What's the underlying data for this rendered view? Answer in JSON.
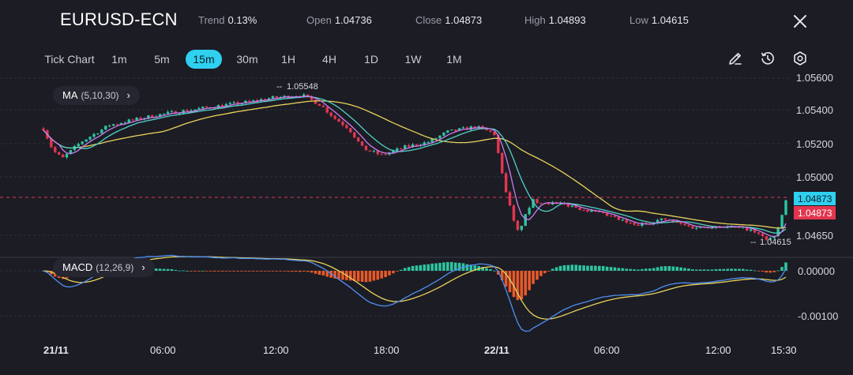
{
  "header": {
    "symbol": "EURUSD-ECN",
    "trend_label": "Trend",
    "trend_value": "0.13%",
    "open_label": "Open",
    "open_value": "1.04736",
    "close_label": "Close",
    "close_value": "1.04873",
    "high_label": "High",
    "high_value": "1.04893",
    "low_label": "Low",
    "low_value": "1.04615",
    "close_icon": "close-icon"
  },
  "toolbar": {
    "tick_chart": "Tick Chart",
    "timeframes": [
      "1m",
      "5m",
      "15m",
      "30m",
      "1H",
      "4H",
      "1D",
      "1W",
      "1M"
    ],
    "active_timeframe": "15m",
    "icons": [
      "draw-pen-icon",
      "history-clock-icon",
      "settings-icon"
    ]
  },
  "price_pane": {
    "indicator_name": "MA",
    "indicator_params": "(5,10,30)",
    "y_ticks": [
      "1.05600",
      "1.05400",
      "1.05200",
      "1.05000",
      "1.04650"
    ],
    "high_marker": "1.05548",
    "low_marker": "1.04615",
    "bid_label": "1.04873",
    "ask_label": "1.04873"
  },
  "macd_pane": {
    "indicator_name": "MACD",
    "indicator_params": "(12,26,9)",
    "y_ticks": [
      "0.00000",
      "-0.00100"
    ]
  },
  "x_axis": {
    "ticks": [
      "21/11",
      "06:00",
      "12:00",
      "18:00",
      "22/11",
      "06:00",
      "12:00",
      "15:30"
    ]
  },
  "colors": {
    "up": "#2ec4a0",
    "down": "#e2364f",
    "ma5": "#c87df0",
    "ma10": "#4fd1c5",
    "ma30": "#e7d35a",
    "macd_line": "#4f8ff2",
    "signal_line": "#e7d35a",
    "hist_pos": "#2ec4a0",
    "hist_neg": "#e8592a",
    "accent": "#2fd0f0"
  },
  "chart_data": {
    "type": "candlestick",
    "symbol": "EURUSD-ECN",
    "interval": "15m",
    "x_labels": [
      "21/11",
      "06:00",
      "12:00",
      "18:00",
      "22/11",
      "06:00",
      "12:00",
      "15:30"
    ],
    "price_anchors": [
      [
        "21/11 00:00",
        1.053
      ],
      [
        "21/11 00:30",
        1.0517
      ],
      [
        "21/11 01:00",
        1.0512
      ],
      [
        "21/11 02:00",
        1.0522
      ],
      [
        "21/11 03:30",
        1.0532
      ],
      [
        "21/11 06:00",
        1.0538
      ],
      [
        "21/11 09:00",
        1.0543
      ],
      [
        "21/11 11:00",
        1.0546
      ],
      [
        "21/11 12:00",
        1.0548
      ],
      [
        "21/11 13:45",
        1.055
      ],
      [
        "21/11 14:45",
        1.0544
      ],
      [
        "21/11 15:30",
        1.0536
      ],
      [
        "21/11 16:15",
        1.053
      ],
      [
        "21/11 17:00",
        1.0518
      ],
      [
        "21/11 18:00",
        1.0514
      ],
      [
        "21/11 19:15",
        1.0519
      ],
      [
        "21/11 20:30",
        1.0522
      ],
      [
        "21/11 21:30",
        1.0528
      ],
      [
        "21/11 23:00",
        1.0531
      ],
      [
        "21/11 23:59",
        1.0527
      ],
      [
        "22/11 00:30",
        1.0498
      ],
      [
        "22/11 01:15",
        1.0468
      ],
      [
        "22/11 02:00",
        1.0487
      ],
      [
        "22/11 04:00",
        1.0484
      ],
      [
        "22/11 06:00",
        1.0478
      ],
      [
        "22/11 07:30",
        1.0472
      ],
      [
        "22/11 09:00",
        1.0476
      ],
      [
        "22/11 10:30",
        1.0471
      ],
      [
        "22/11 12:00",
        1.0472
      ],
      [
        "22/11 13:30",
        1.047
      ],
      [
        "22/11 14:30",
        1.0464
      ],
      [
        "22/11 15:00",
        1.0466
      ],
      [
        "22/11 15:30",
        1.0487
      ]
    ],
    "price_range": [
      1.0455,
      1.0562
    ],
    "macd_range": [
      -0.00118,
      0.00012
    ],
    "series": [
      "MA5",
      "MA10",
      "MA30",
      "MACD",
      "Signal",
      "Histogram"
    ]
  }
}
